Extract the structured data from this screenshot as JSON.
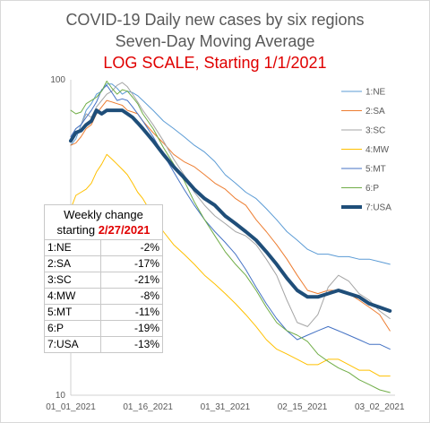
{
  "chart_data": {
    "type": "line",
    "title": "COVID-19 Daily new cases by six regions",
    "subtitle": "Seven-Day Moving Average",
    "scale_note": "LOG SCALE, Starting 1/1/2021",
    "yscale": "log",
    "ylim": [
      10,
      100
    ],
    "y_tick_labels": [
      "100",
      "10"
    ],
    "x_tick_labels": [
      "01_01_2021",
      "01_16_2021",
      "01_31_2021",
      "02_15_2021",
      "03_02_2021"
    ],
    "x_range_days": [
      0,
      63
    ],
    "grid": false,
    "legend_position": "right",
    "series": [
      {
        "name": "1:NE",
        "color": "#5b9bd5",
        "width": 1,
        "x": [
          0,
          1,
          2,
          3,
          4,
          5,
          6,
          7,
          8,
          9,
          10,
          11,
          12,
          13,
          14,
          16,
          18,
          20,
          22,
          24,
          26,
          28,
          30,
          32,
          34,
          36,
          38,
          40,
          42,
          44,
          46,
          47,
          48,
          50,
          52,
          54,
          56,
          58,
          60,
          62
        ],
        "y": [
          62,
          65,
          72,
          80,
          84,
          90,
          92,
          97,
          97,
          94,
          90,
          92,
          91,
          89,
          86,
          80,
          74,
          70,
          66,
          62,
          59,
          55,
          50,
          47,
          44,
          42,
          39,
          36,
          33,
          31,
          29,
          28.5,
          28,
          28,
          27.5,
          27.5,
          27,
          27,
          26.5,
          26
        ]
      },
      {
        "name": "2:SA",
        "color": "#ed7d31",
        "width": 1,
        "x": [
          0,
          1,
          2,
          3,
          4,
          5,
          6,
          7,
          8,
          9,
          10,
          11,
          12,
          13,
          14,
          16,
          18,
          20,
          22,
          24,
          26,
          28,
          30,
          32,
          34,
          36,
          38,
          40,
          42,
          44,
          46,
          48,
          50,
          52,
          54,
          56,
          58,
          60,
          62
        ],
        "y": [
          62,
          63,
          66,
          70,
          72,
          78,
          82,
          86,
          85,
          84,
          83,
          80,
          79,
          78,
          74,
          68,
          63,
          58,
          55,
          53,
          50,
          47,
          45,
          42,
          40,
          36,
          33,
          30,
          27,
          24,
          21.5,
          21,
          21.5,
          21.5,
          21,
          20,
          19,
          18,
          16
        ]
      },
      {
        "name": "3:SC",
        "color": "#a5a5a5",
        "width": 1,
        "x": [
          0,
          1,
          2,
          3,
          4,
          5,
          6,
          7,
          8,
          9,
          10,
          11,
          12,
          13,
          14,
          16,
          18,
          20,
          22,
          24,
          26,
          28,
          30,
          32,
          34,
          36,
          38,
          40,
          42,
          44,
          46,
          48,
          50,
          52,
          54,
          56,
          58,
          60,
          62
        ],
        "y": [
          66,
          70,
          72,
          78,
          76,
          82,
          86,
          90,
          92,
          96,
          98,
          95,
          90,
          85,
          80,
          72,
          64,
          56,
          50,
          44,
          40,
          37,
          35,
          33,
          32,
          30,
          27,
          24,
          20,
          17,
          16.5,
          18,
          22,
          24,
          23,
          21,
          20,
          18.5,
          17.5
        ]
      },
      {
        "name": "4:MW",
        "color": "#ffc000",
        "width": 1,
        "x": [
          0,
          1,
          2,
          3,
          4,
          5,
          6,
          7,
          8,
          9,
          10,
          11,
          12,
          13,
          14,
          16,
          18,
          20,
          22,
          24,
          26,
          28,
          30,
          32,
          34,
          36,
          38,
          40,
          42,
          44,
          46,
          48,
          50,
          52,
          54,
          56,
          58,
          60,
          62
        ],
        "y": [
          39,
          43,
          44,
          45,
          47,
          51,
          54,
          58,
          56,
          54,
          52,
          50,
          47,
          44,
          42,
          37,
          33,
          30,
          28,
          26,
          24,
          22.5,
          21,
          19.5,
          18,
          16.5,
          15,
          14,
          13.5,
          13,
          12.5,
          12.5,
          13,
          13,
          12.5,
          12,
          12,
          11.5,
          11.5
        ]
      },
      {
        "name": "5:MT",
        "color": "#4472c4",
        "width": 1,
        "x": [
          0,
          1,
          2,
          3,
          4,
          5,
          6,
          7,
          8,
          9,
          10,
          11,
          12,
          13,
          14,
          16,
          18,
          20,
          22,
          24,
          26,
          28,
          30,
          32,
          34,
          36,
          38,
          40,
          42,
          44,
          46,
          48,
          50,
          52,
          54,
          56,
          58,
          60,
          62
        ],
        "y": [
          66,
          70,
          72,
          76,
          80,
          85,
          93,
          96,
          91,
          86,
          87,
          86,
          82,
          78,
          74,
          66,
          58,
          51,
          45,
          40,
          36,
          33,
          30.5,
          28,
          25,
          22,
          19.5,
          17.5,
          16,
          15,
          15.5,
          16,
          16.5,
          16,
          15.5,
          15,
          14.5,
          14.5,
          14
        ]
      },
      {
        "name": "6:P",
        "color": "#70ad47",
        "width": 1,
        "x": [
          0,
          1,
          2,
          3,
          4,
          5,
          6,
          7,
          8,
          9,
          10,
          11,
          12,
          13,
          14,
          16,
          18,
          20,
          22,
          24,
          26,
          28,
          30,
          32,
          34,
          36,
          38,
          40,
          42,
          44,
          46,
          48,
          50,
          52,
          54,
          56,
          58,
          60,
          62
        ],
        "y": [
          80,
          78,
          79,
          84,
          86,
          88,
          92,
          99,
          94,
          90,
          93,
          92,
          88,
          84,
          78,
          70,
          61,
          54,
          48,
          41,
          36,
          32,
          28.5,
          26,
          24,
          21.5,
          19,
          17,
          16,
          15.5,
          14.8,
          13.5,
          12.8,
          12.2,
          11.8,
          11.2,
          10.8,
          10.4,
          10.2
        ]
      },
      {
        "name": "7:USA",
        "color": "#1f4e79",
        "width": 4,
        "x": [
          0,
          1,
          2,
          3,
          4,
          5,
          6,
          7,
          8,
          9,
          10,
          11,
          12,
          13,
          14,
          16,
          18,
          20,
          22,
          24,
          26,
          28,
          30,
          32,
          34,
          36,
          38,
          40,
          42,
          44,
          46,
          48,
          50,
          52,
          54,
          56,
          58,
          60,
          62
        ],
        "y": [
          64,
          68,
          69,
          72,
          74,
          80,
          78,
          80,
          80,
          80,
          80,
          78,
          76,
          73,
          70,
          64,
          58,
          53,
          49,
          45,
          42,
          40,
          37,
          35,
          33,
          31,
          28.5,
          26,
          23.5,
          21.5,
          20.5,
          20.5,
          21,
          21.5,
          21,
          20.5,
          19.5,
          19,
          18.5
        ]
      }
    ]
  },
  "weekly_change": {
    "title_line1": "Weekly change",
    "title_line2_prefix": "starting ",
    "title_line2_date": "2/27/2021",
    "rows": [
      {
        "label": "1:NE",
        "value": "-2%"
      },
      {
        "label": "2:SA",
        "value": "-17%"
      },
      {
        "label": "3:SC",
        "value": "-21%"
      },
      {
        "label": "4:MW",
        "value": "-8%"
      },
      {
        "label": "5:MT",
        "value": "-11%"
      },
      {
        "label": "6:P",
        "value": "-19%"
      },
      {
        "label": "7:USA",
        "value": "-13%"
      }
    ]
  }
}
